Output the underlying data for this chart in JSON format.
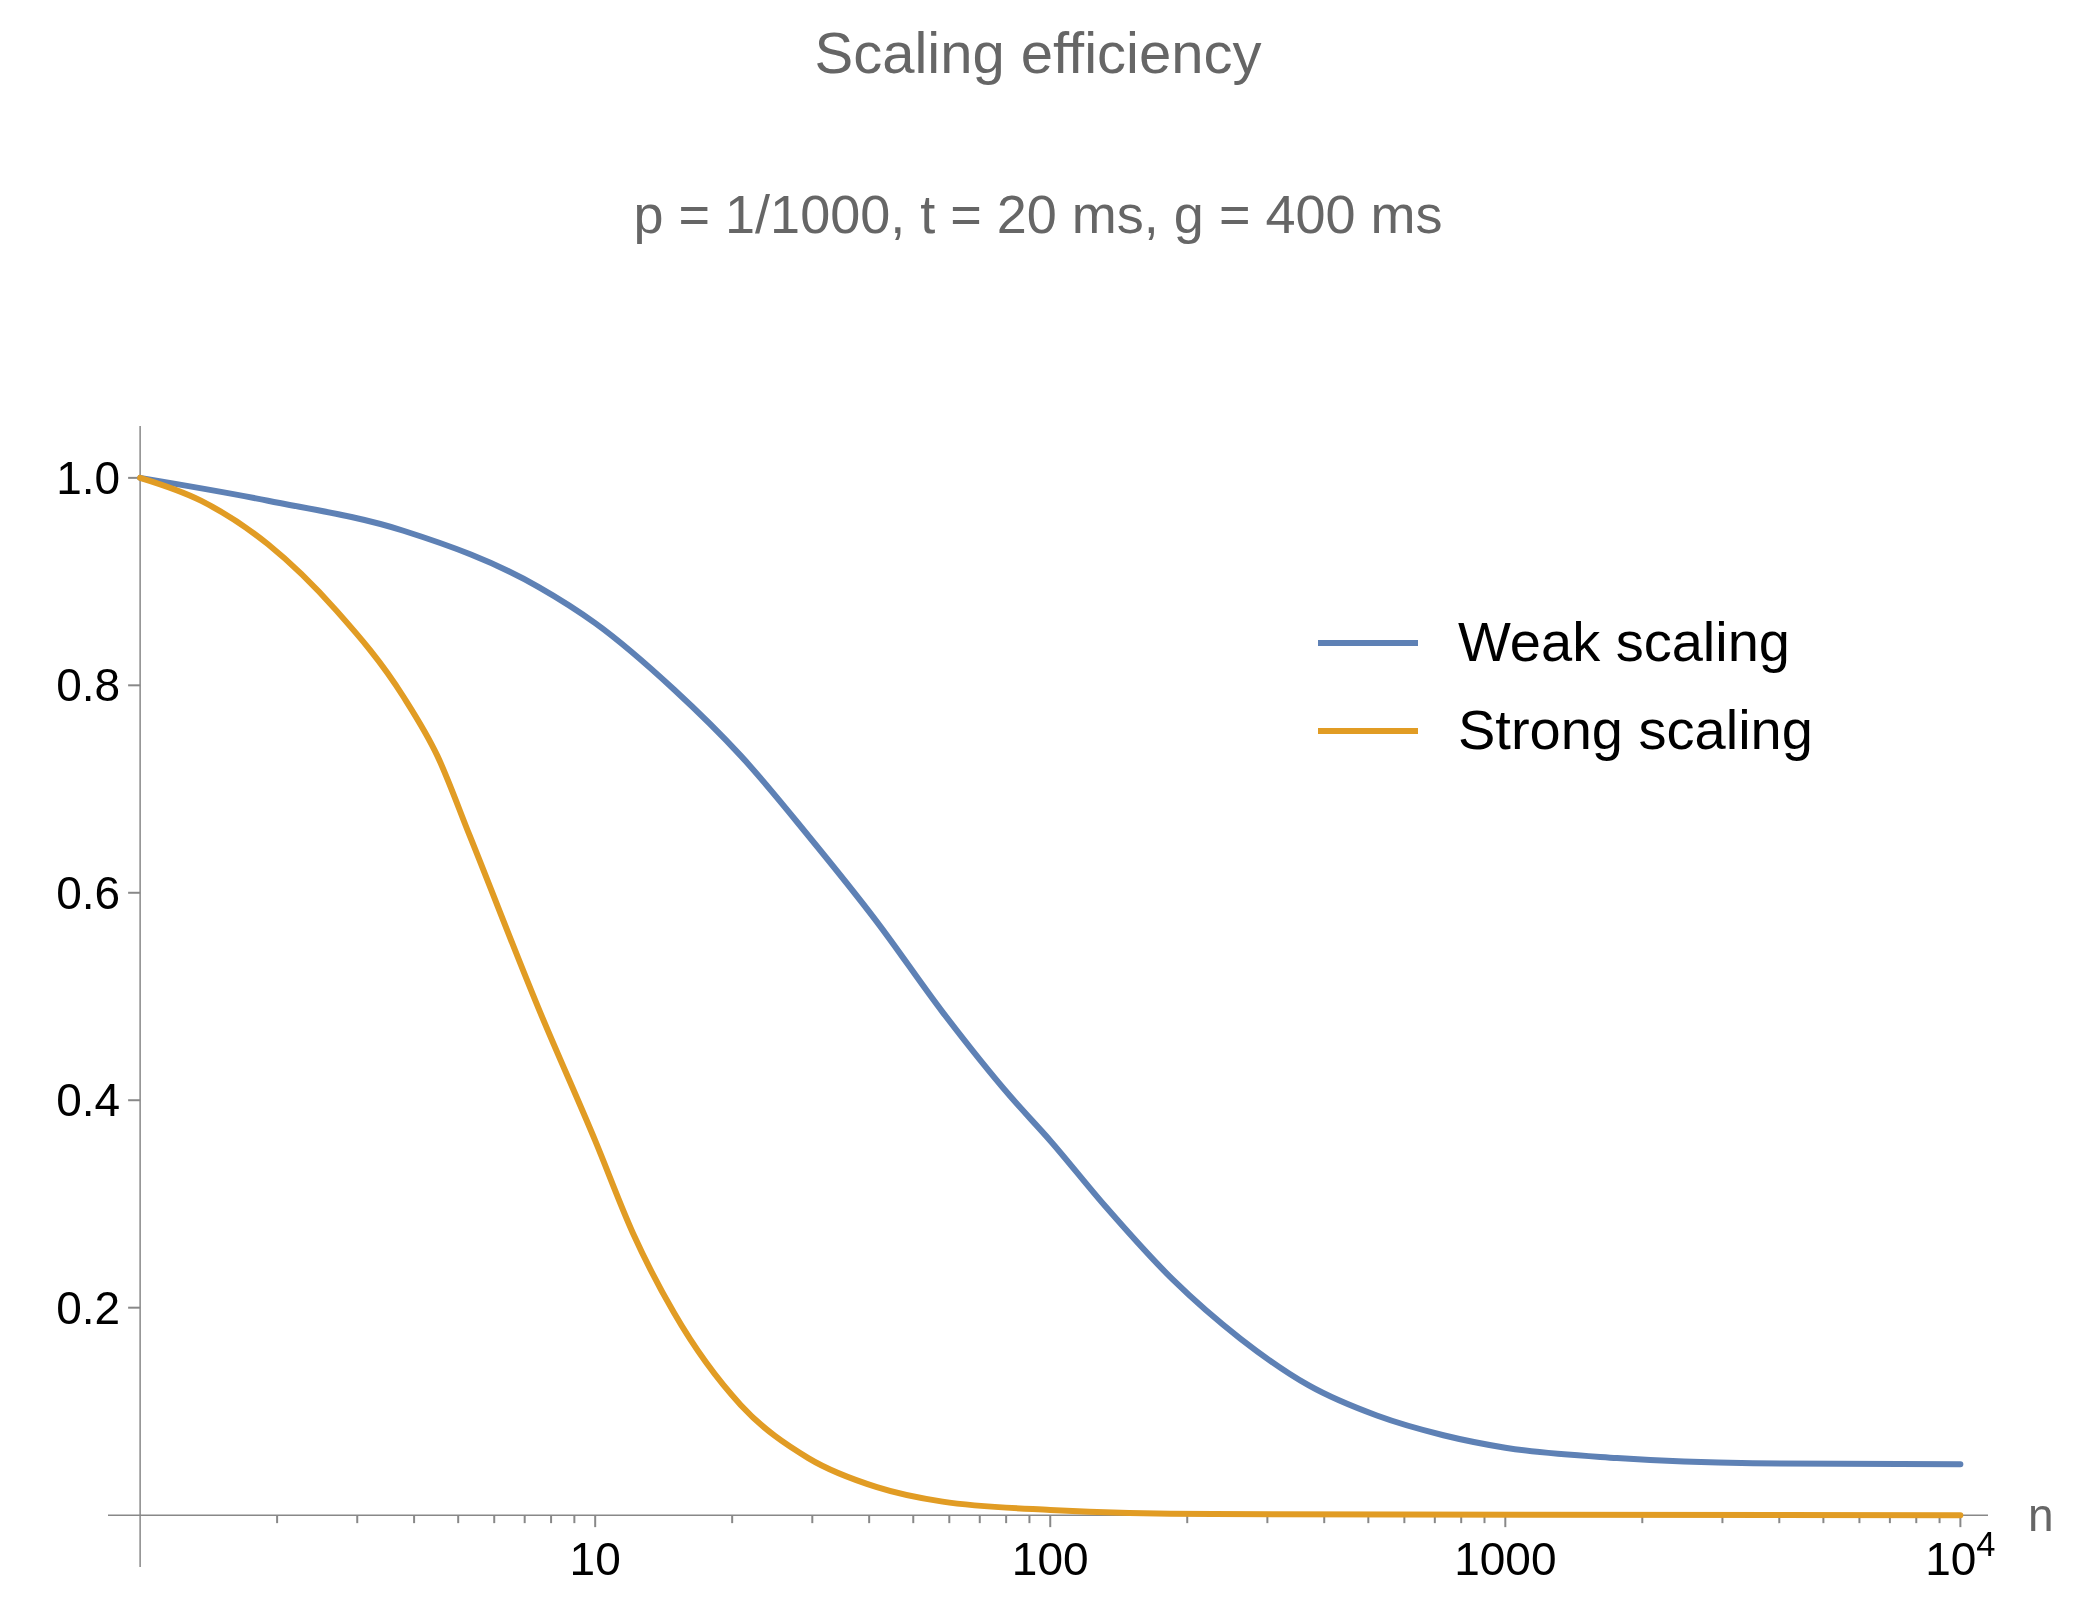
{
  "chart_data": {
    "type": "line",
    "title": "Scaling efficiency",
    "subtitle": "p = 1/1000,  t = 20 ms,  g = 400 ms",
    "xlabel": "n",
    "log": "x",
    "xlim": [
      0.85,
      11500
    ],
    "ylim": [
      -0.05,
      1.05
    ],
    "xticks": [
      {
        "value": 2,
        "label": null
      },
      {
        "value": 3,
        "label": null
      },
      {
        "value": 4,
        "label": null
      },
      {
        "value": 5,
        "label": null
      },
      {
        "value": 6,
        "label": null
      },
      {
        "value": 7,
        "label": null
      },
      {
        "value": 8,
        "label": null
      },
      {
        "value": 9,
        "label": null
      },
      10,
      {
        "value": 20,
        "label": null
      },
      {
        "value": 30,
        "label": null
      },
      {
        "value": 40,
        "label": null
      },
      {
        "value": 50,
        "label": null
      },
      {
        "value": 60,
        "label": null
      },
      {
        "value": 70,
        "label": null
      },
      {
        "value": 80,
        "label": null
      },
      {
        "value": 90,
        "label": null
      },
      100,
      {
        "value": 200,
        "label": null
      },
      {
        "value": 300,
        "label": null
      },
      {
        "value": 400,
        "label": null
      },
      {
        "value": 500,
        "label": null
      },
      {
        "value": 600,
        "label": null
      },
      {
        "value": 700,
        "label": null
      },
      {
        "value": 800,
        "label": null
      },
      {
        "value": 900,
        "label": null
      },
      1000,
      {
        "value": 2000,
        "label": null
      },
      {
        "value": 3000,
        "label": null
      },
      {
        "value": 4000,
        "label": null
      },
      {
        "value": 5000,
        "label": null
      },
      {
        "value": 6000,
        "label": null
      },
      {
        "value": 7000,
        "label": null
      },
      {
        "value": 8000,
        "label": null
      },
      {
        "value": 9000,
        "label": null
      },
      {
        "value": 10000,
        "label": "10$^{4}$"
      }
    ],
    "yticks": [
      0.2,
      0.4,
      0.6,
      0.8,
      {
        "value": 1,
        "label": "1.0"
      }
    ],
    "legend": "top right",
    "grid": false,
    "marker": "none",
    "line_style": "solid",
    "series": [
      {
        "name": "Weak scaling",
        "color": "#5e81b5",
        "x": [
          1,
          1.91,
          3.79,
          7.5,
          10,
          14.9,
          20.9,
          29.4,
          41.6,
          58,
          81.6,
          100,
          132,
          186,
          262,
          370,
          522,
          731,
          1000,
          1760,
          3500,
          10000
        ],
        "values": [
          1,
          0.978,
          0.949,
          0.895,
          0.86,
          0.796,
          0.732,
          0.655,
          0.572,
          0.485,
          0.404,
          0.361,
          0.298,
          0.227,
          0.17,
          0.125,
          0.096,
          0.077,
          0.065,
          0.055,
          0.05,
          0.049
        ]
      },
      {
        "name": "Strong scaling",
        "color": "#e19c24",
        "x": [
          1,
          1.36,
          1.91,
          2.7,
          3.79,
          4.5,
          5.3,
          7.5,
          10,
          12.1,
          14.9,
          20.9,
          29.4,
          41.6,
          58,
          100,
          228,
          10000
        ],
        "values": [
          1,
          0.978,
          0.936,
          0.872,
          0.789,
          0.732,
          0.655,
          0.489,
          0.361,
          0.272,
          0.195,
          0.106,
          0.055,
          0.027,
          0.013,
          0.005,
          0.001,
          0
        ]
      }
    ]
  }
}
